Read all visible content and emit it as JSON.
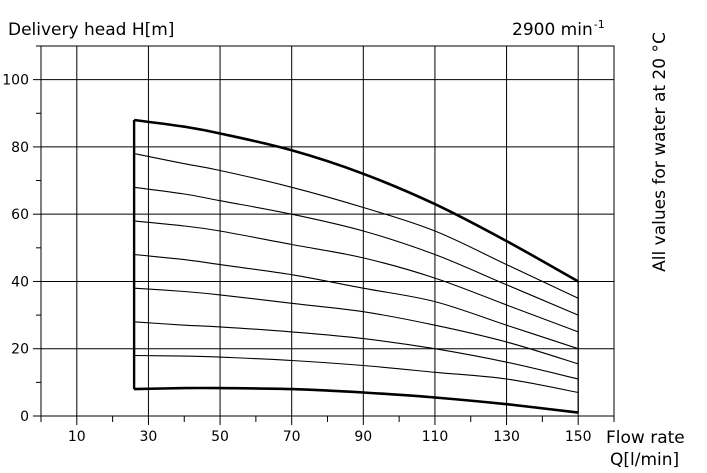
{
  "header": {
    "y_axis_label": "Delivery head H[m]",
    "speed_value": "2900 min",
    "speed_exponent": "-1",
    "x_axis_label_line1": "Flow rate",
    "x_axis_label_line2": "Q[l/min]",
    "side_note": "All values for water at 20 °C"
  },
  "chart_data": {
    "type": "line",
    "title": "",
    "xlabel": "Flow rate Q[l/min]",
    "ylabel": "Delivery head H[m]",
    "xlim": [
      0,
      160
    ],
    "ylim": [
      0,
      110
    ],
    "x_ticks": [
      10,
      30,
      50,
      70,
      90,
      110,
      130,
      150
    ],
    "y_ticks": [
      0,
      20,
      40,
      60,
      80,
      100
    ],
    "grid": true,
    "operating_range": {
      "q_min": 26,
      "q_max": 150
    },
    "series": [
      {
        "x": [
          26,
          40,
          50,
          70,
          90,
          110,
          130,
          150
        ],
        "values": [
          88,
          86,
          84,
          79,
          72,
          63,
          52,
          40
        ],
        "bold": true
      },
      {
        "x": [
          26,
          40,
          50,
          70,
          90,
          110,
          130,
          150
        ],
        "values": [
          78,
          75,
          73,
          68,
          62,
          55,
          45,
          35
        ]
      },
      {
        "x": [
          26,
          40,
          50,
          70,
          90,
          110,
          130,
          150
        ],
        "values": [
          68,
          66,
          64,
          60,
          55,
          48,
          39,
          30
        ]
      },
      {
        "x": [
          26,
          40,
          50,
          70,
          90,
          110,
          130,
          150
        ],
        "values": [
          58,
          56.5,
          55,
          51,
          47,
          41,
          33,
          25
        ]
      },
      {
        "x": [
          26,
          40,
          50,
          70,
          90,
          110,
          130,
          150
        ],
        "values": [
          48,
          46.5,
          45,
          42,
          38,
          34,
          27,
          20
        ]
      },
      {
        "x": [
          26,
          40,
          50,
          70,
          90,
          110,
          130,
          150
        ],
        "values": [
          38,
          37,
          36,
          33.5,
          31,
          27,
          22,
          15.5
        ]
      },
      {
        "x": [
          26,
          40,
          50,
          70,
          90,
          110,
          130,
          150
        ],
        "values": [
          28,
          27,
          26.5,
          25,
          23,
          20,
          16,
          11
        ]
      },
      {
        "x": [
          26,
          40,
          50,
          70,
          90,
          110,
          130,
          150
        ],
        "values": [
          18,
          17.8,
          17.5,
          16.5,
          15,
          13,
          11,
          7
        ]
      },
      {
        "x": [
          26,
          40,
          50,
          70,
          90,
          110,
          130,
          150
        ],
        "values": [
          8,
          8.3,
          8.3,
          8,
          7,
          5.5,
          3.5,
          1
        ],
        "bold": true
      }
    ]
  }
}
